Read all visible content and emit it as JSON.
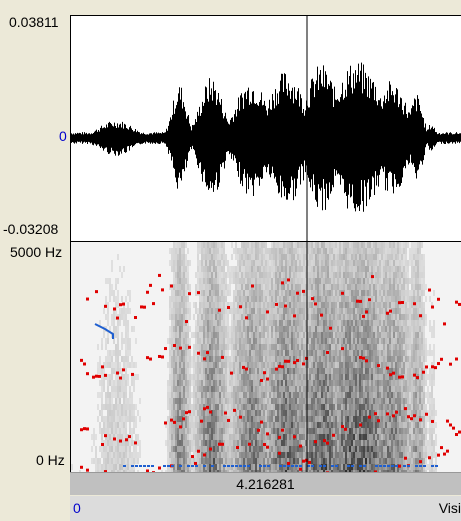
{
  "waveform": {
    "max_label": "0.03811",
    "zero_label": "0",
    "min_label": "-0.03208"
  },
  "spectrogram": {
    "top_label": "5000 Hz",
    "bottom_label": "0 Hz"
  },
  "time_bar": {
    "label": "4.216281"
  },
  "bottom_bar": {
    "left_label": "0",
    "right_label": "Visi"
  },
  "colors": {
    "formant": "#e00000",
    "pitch": "#1f5fd0",
    "cursor": "#000000"
  }
}
